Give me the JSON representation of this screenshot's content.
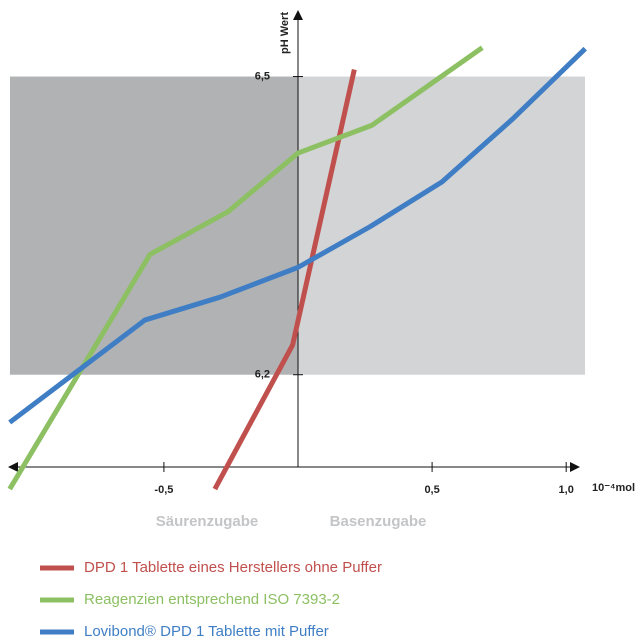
{
  "chart_data": {
    "type": "line",
    "y_label": "pH Wert",
    "x_label": "10⁻⁴mol",
    "annotations": [
      "Säurenzugabe",
      "Basenzugabe"
    ],
    "xlim": [
      -1.1,
      1.1
    ],
    "ylim": [
      6.08,
      6.575
    ],
    "xticks": [
      {
        "value": -0.5,
        "label": "-0,5"
      },
      {
        "value": 0.5,
        "label": "0,5"
      },
      {
        "value": 1.0,
        "label": "1,0"
      }
    ],
    "yticks": [
      {
        "value": 6.2,
        "label": "6,2"
      },
      {
        "value": 6.5,
        "label": "6,5"
      }
    ],
    "band_colors": [
      "#b1b2b4",
      "#d3d4d6"
    ],
    "series": [
      {
        "name": "DPD 1 Tablette eines Herstellers ohne Puffer",
        "color": "#c0504d",
        "x": [
          -0.31,
          -0.02,
          0.21
        ],
        "values": [
          6.085,
          6.23,
          6.507
        ]
      },
      {
        "name": "Reagenzien entsprechend ISO 7393-2",
        "color": "#8cc063",
        "x": [
          -1.075,
          -0.552,
          -0.261,
          0,
          0.276,
          0.687
        ],
        "values": [
          6.085,
          6.321,
          6.364,
          6.423,
          6.451,
          6.529
        ]
      },
      {
        "name": "Lovibond® DPD 1 Tablette mit Puffer",
        "color": "#3f7ec4",
        "x": [
          -1.075,
          -0.571,
          -0.291,
          0,
          0.269,
          0.537,
          0.799,
          1.071
        ],
        "values": [
          6.152,
          6.255,
          6.278,
          6.308,
          6.349,
          6.394,
          6.457,
          6.528
        ]
      }
    ]
  }
}
